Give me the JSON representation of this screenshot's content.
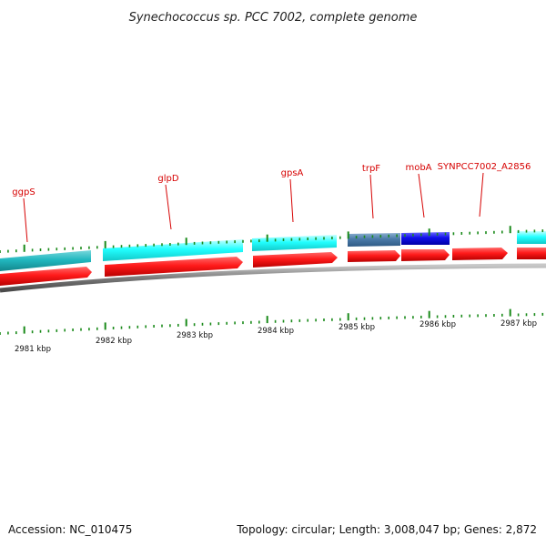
{
  "title": "Synechococcus sp. PCC 7002, complete genome",
  "accession": "Accession: NC_010475",
  "topology": "Topology: circular; Length: 3,008,047 bp; Genes: 2,872",
  "colors": {
    "title": "#222222",
    "gene_label": "#d60000",
    "forward_cds": "#ff1a1a",
    "reverse_cds_cyan": "#22ffff",
    "reverse_cds_teal": "#22b8c0",
    "reverse_cds_steel": "#4a7aa8",
    "reverse_cds_blue": "#1010e8",
    "backbone": "#7a7a7a",
    "tick": "#1a8a1a"
  },
  "axis": {
    "unit": "kbp",
    "labels": [
      "2981 kbp",
      "2982 kbp",
      "2983 kbp",
      "2984 kbp",
      "2985 kbp",
      "2986 kbp",
      "2987 kbp"
    ]
  },
  "gene_labels": [
    "ggpS",
    "glpD",
    "gpsA",
    "trpF",
    "mobA",
    "SYNPCC7002_A2856"
  ]
}
